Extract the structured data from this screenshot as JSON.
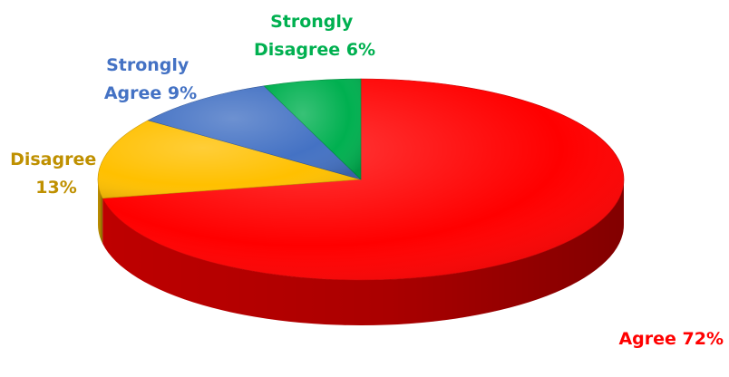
{
  "chart_data": {
    "type": "pie",
    "style": "3d",
    "slices": [
      {
        "category": "Agree",
        "value": 72,
        "label": "Agree 72%",
        "color": "#ff0000",
        "side_color": "#c80000",
        "label_color": "#ff0000"
      },
      {
        "category": "Disagree",
        "value": 13,
        "label": "Disagree 13%",
        "color": "#ffc000",
        "side_color": "#c89600",
        "label_color": "#bf9000"
      },
      {
        "category": "Strongly Agree",
        "value": 9,
        "label": "Strongly Agree 9%",
        "color": "#4472c4",
        "side_color": "#2f5597",
        "label_color": "#4472c4"
      },
      {
        "category": "Strongly Disagree",
        "value": 6,
        "label": "Strongly Disagree 6%",
        "color": "#00b050",
        "side_color": "#008a3e",
        "label_color": "#00b050"
      }
    ]
  }
}
